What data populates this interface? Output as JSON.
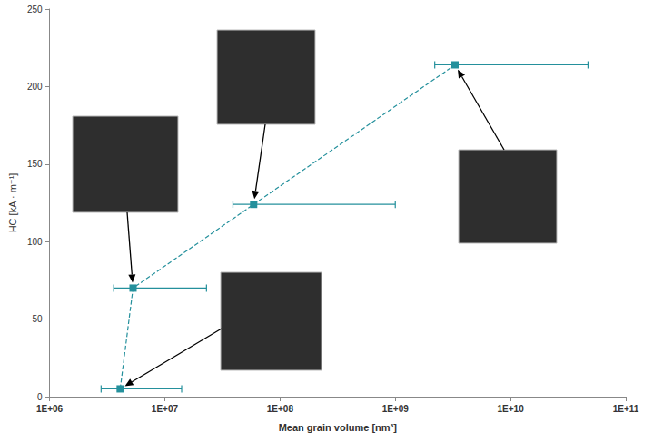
{
  "chart_data": {
    "type": "line",
    "x_label": "Mean grain volume [nm³]",
    "y_label": "HC [kA · m⁻¹]",
    "x": [
      4100000,
      5300000,
      59000000,
      3300000000
    ],
    "values": [
      5,
      70,
      124,
      214
    ],
    "x_error_low": [
      2800000,
      3600000,
      39000000,
      2200000000
    ],
    "x_error_high": [
      14000000,
      23000000,
      1000000000,
      47000000000
    ],
    "color": "#24909c",
    "marker": "square",
    "line_style": "dashed",
    "log": "x",
    "grid": false,
    "xlim": [
      1000000,
      100000000000
    ],
    "xticks": [
      {
        "value": 1000000,
        "label": "1E+06"
      },
      {
        "value": 10000000,
        "label": "1E+07"
      },
      {
        "value": 100000000,
        "label": "1E+08"
      },
      {
        "value": 1000000000,
        "label": "1E+09"
      },
      {
        "value": 10000000000,
        "label": "1E+10"
      },
      {
        "value": 100000000000,
        "label": "1E+11"
      }
    ],
    "ylim": [
      0,
      250
    ],
    "yticks": [
      0,
      50,
      100,
      150,
      200,
      250
    ]
  }
}
